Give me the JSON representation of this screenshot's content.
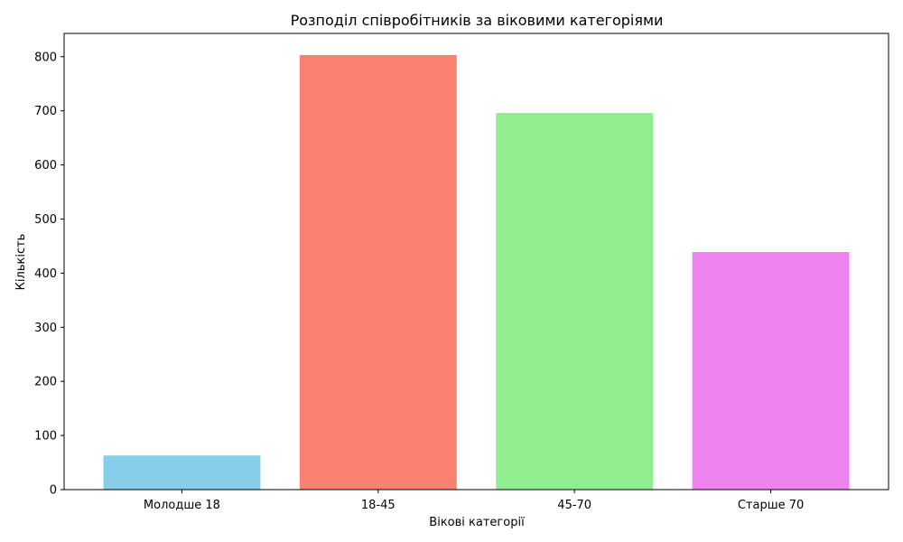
{
  "chart_data": {
    "type": "bar",
    "title": "Розподіл співробітників за віковими категоріями",
    "xlabel": "Вікові категорії",
    "ylabel": "Кількість",
    "categories": [
      "Молодше 18",
      "18-45",
      "45-70",
      "Старше 70"
    ],
    "values": [
      63,
      803,
      696,
      439
    ],
    "colors": [
      "#87ceeb",
      "#fa8072",
      "#90ee90",
      "#ee82ee"
    ],
    "ylim": [
      0,
      843
    ],
    "yticks": [
      0,
      100,
      200,
      300,
      400,
      500,
      600,
      700,
      800
    ],
    "grid": false,
    "legend": "none"
  }
}
